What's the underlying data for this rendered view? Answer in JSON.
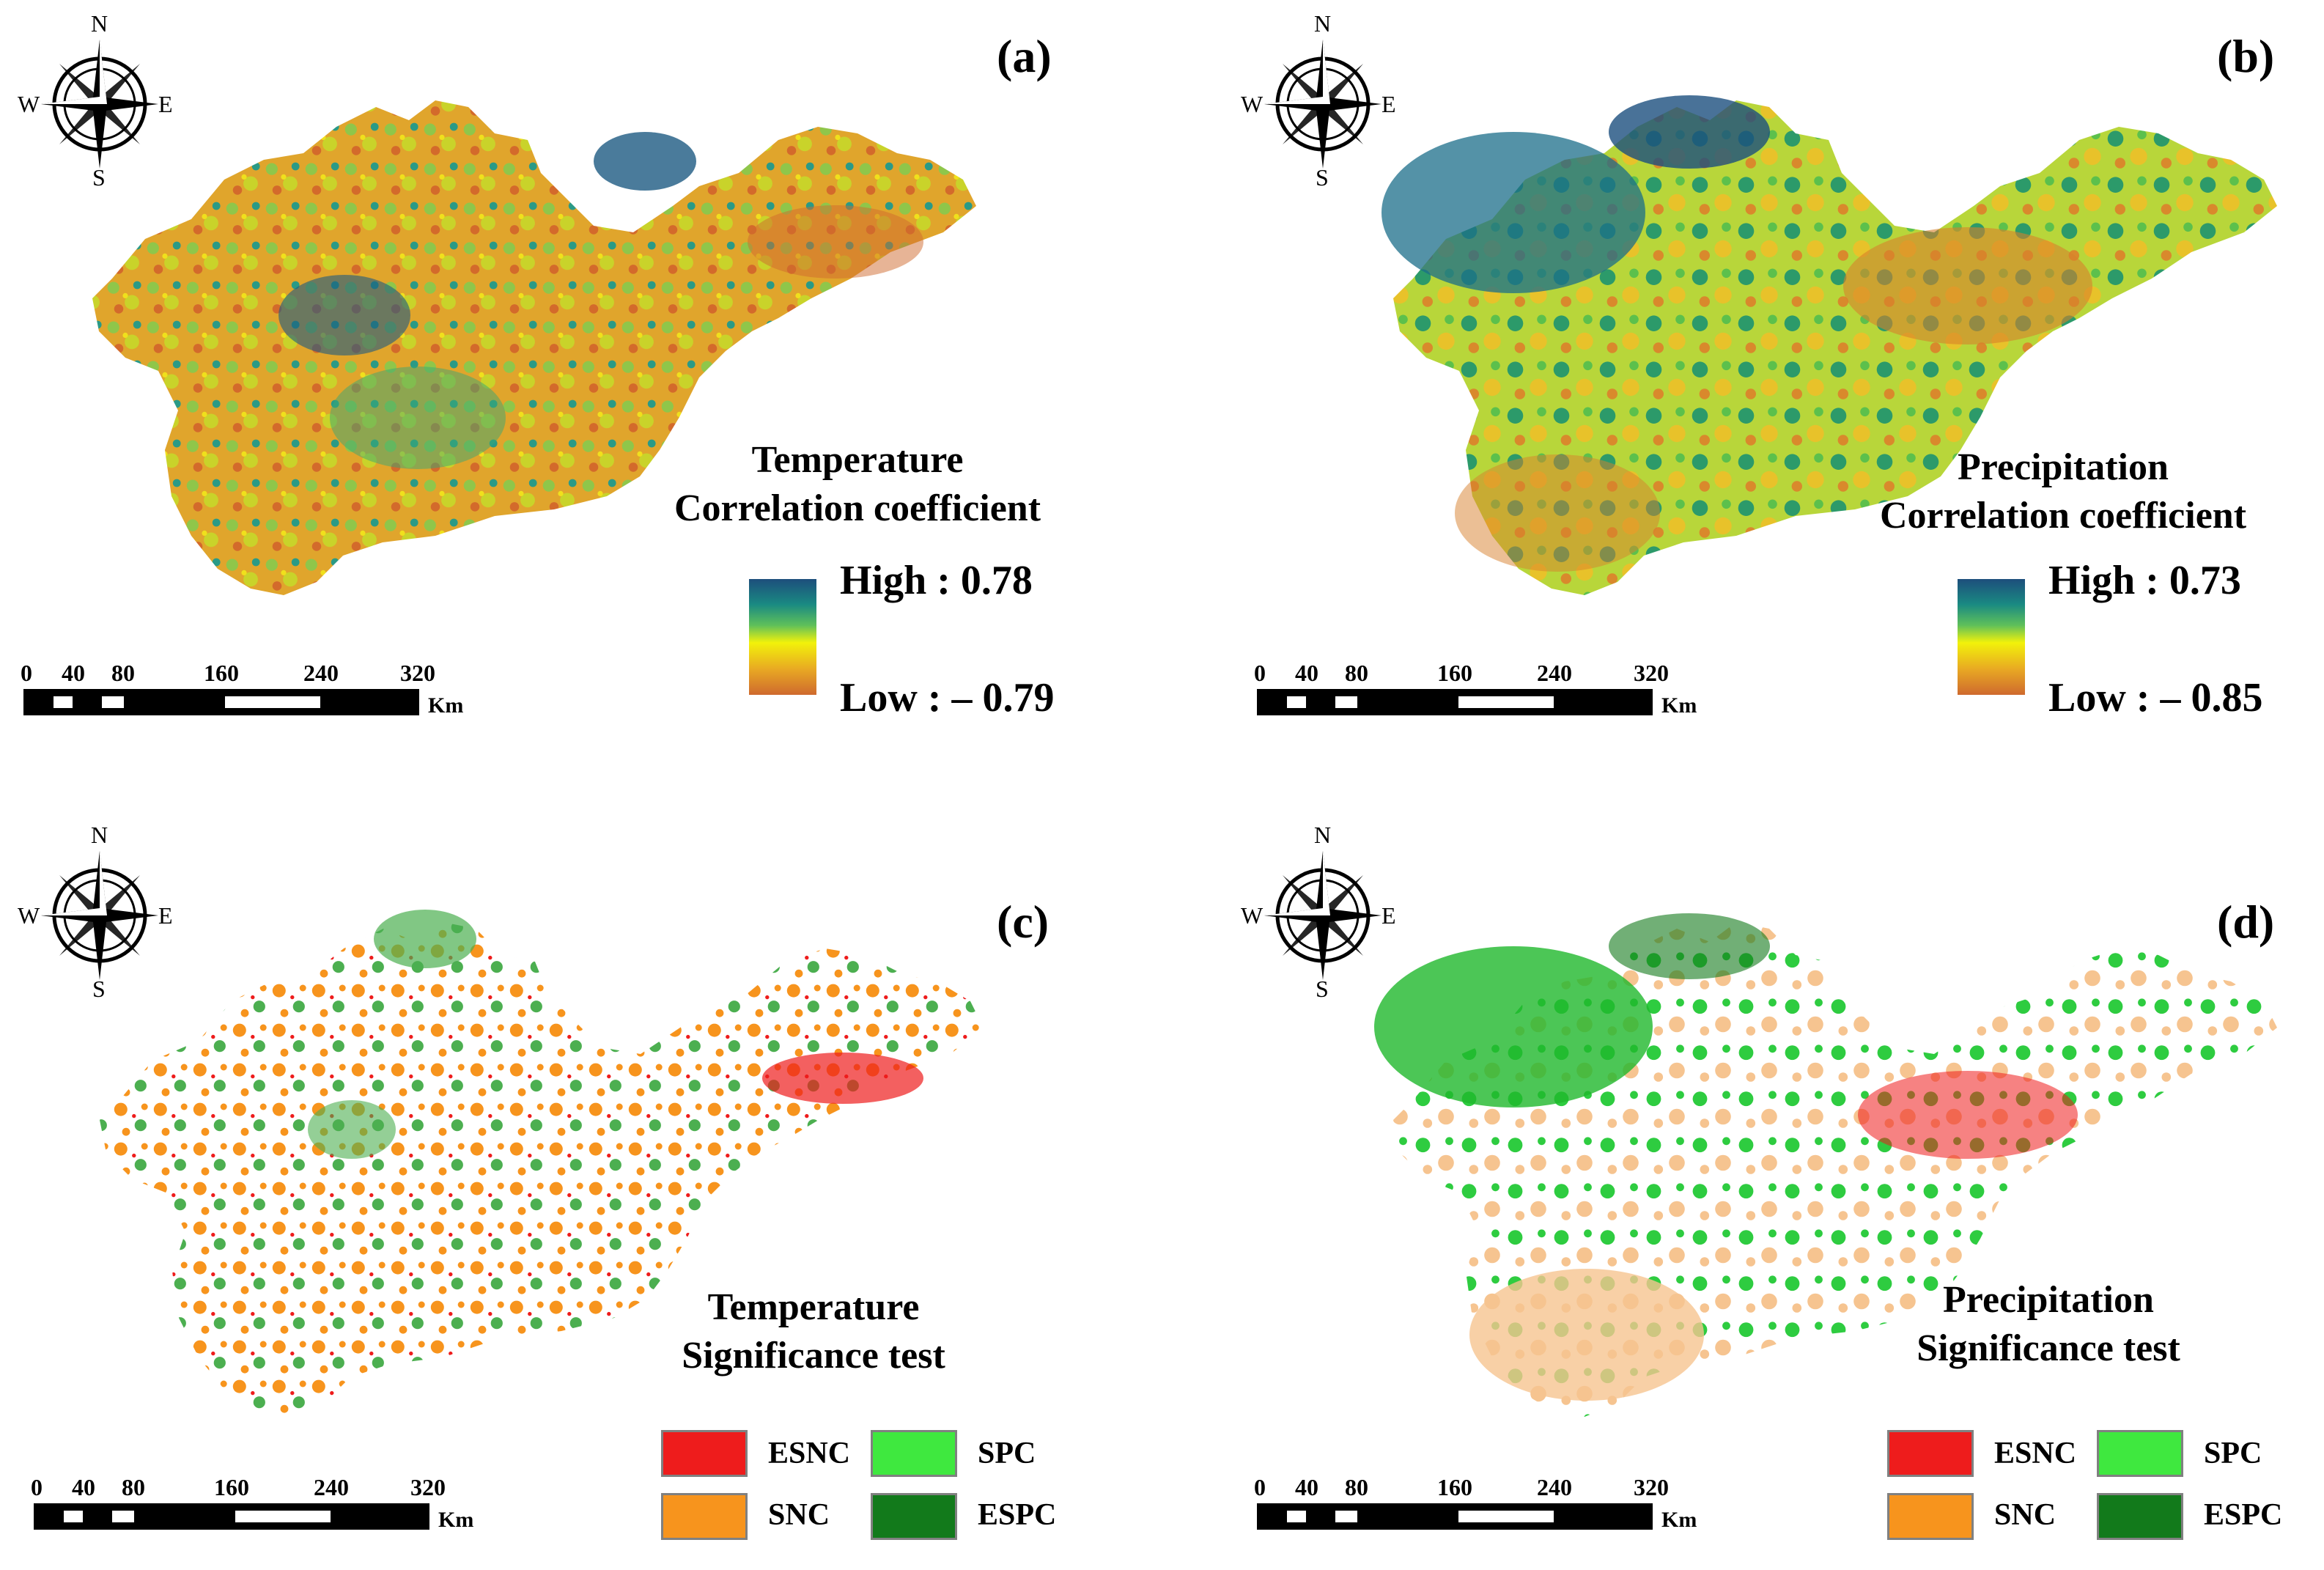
{
  "panels": {
    "a": {
      "label": "(a)",
      "title_line1": "Temperature",
      "title_line2": "Correlation coefficient",
      "high": "High : 0.78",
      "low": "Low :  – 0.79"
    },
    "b": {
      "label": "(b)",
      "title_line1": "Precipitation",
      "title_line2": "Correlation coefficient",
      "high": "High : 0.73",
      "low": "Low :  – 0.85"
    },
    "c": {
      "label": "(c)",
      "title_line1": "Temperature",
      "title_line2": "Significance test"
    },
    "d": {
      "label": "(d)",
      "title_line1": "Precipitation",
      "title_line2": "Significance test"
    }
  },
  "categories": {
    "esnc": "ESNC",
    "snc": "SNC",
    "spc": "SPC",
    "espc": "ESPC"
  },
  "scale": {
    "ticks": [
      "0",
      "40",
      "80",
      "160",
      "240",
      "320"
    ],
    "unit": "Km"
  },
  "compass": {
    "n": "N",
    "s": "S",
    "e": "E",
    "w": "W"
  },
  "colors": {
    "ramp_high": "#1d4e7c",
    "ramp_mid": "#f2f20a",
    "ramp_low": "#cf6a2e",
    "esnc": "#ee1c1c",
    "snc": "#f7941d",
    "spc": "#3fe83f",
    "espc": "#127a1b",
    "snc_light": "#f6c490"
  }
}
